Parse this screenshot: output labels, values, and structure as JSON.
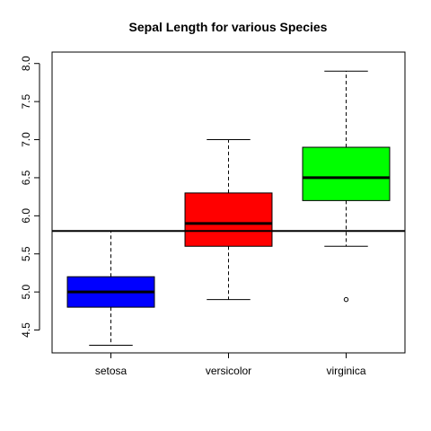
{
  "chart_data": {
    "type": "boxplot",
    "title": "Sepal Length for various Species",
    "xlabel": "",
    "ylabel": "",
    "categories": [
      "setosa",
      "versicolor",
      "virginica"
    ],
    "ylim": [
      4.2,
      8.15
    ],
    "yticks": [
      4.5,
      5.0,
      5.5,
      6.0,
      6.5,
      7.0,
      7.5,
      8.0
    ],
    "ytick_labels": [
      "4.5",
      "5.0",
      "5.5",
      "6.0",
      "6.5",
      "7.0",
      "7.5",
      "8.0"
    ],
    "grid": false,
    "boxes": [
      {
        "category": "setosa",
        "whisker_low": 4.3,
        "q1": 4.8,
        "median": 5.0,
        "q3": 5.2,
        "whisker_high": 5.8,
        "outliers": [],
        "color": "#0000ff"
      },
      {
        "category": "versicolor",
        "whisker_low": 4.9,
        "q1": 5.6,
        "median": 5.9,
        "q3": 6.3,
        "whisker_high": 7.0,
        "outliers": [],
        "color": "#ff0000"
      },
      {
        "category": "virginica",
        "whisker_low": 5.6,
        "q1": 6.2,
        "median": 6.5,
        "q3": 6.9,
        "whisker_high": 7.9,
        "outliers": [
          4.9
        ],
        "color": "#00ff00"
      }
    ],
    "reference_line": {
      "y": 5.8,
      "orientation": "horizontal",
      "color": "#000000"
    }
  }
}
